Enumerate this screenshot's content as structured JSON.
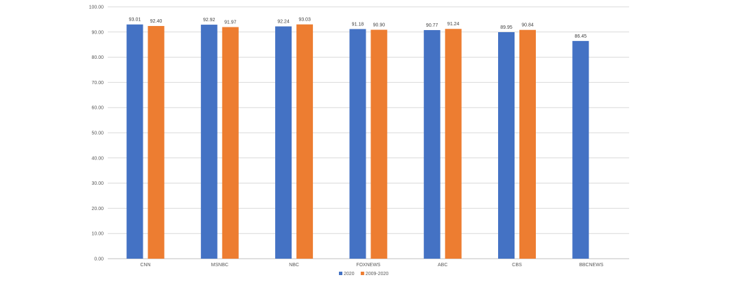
{
  "chart_data": {
    "type": "bar",
    "categories": [
      "CNN",
      "MSNBC",
      "NBC",
      "FOXNEWS",
      "ABC",
      "CBS",
      "BBCNEWS"
    ],
    "series": [
      {
        "name": "2020",
        "color": "#4472C4",
        "values": [
          93.01,
          92.92,
          92.24,
          91.18,
          90.77,
          89.95,
          86.45
        ],
        "labels": [
          "93.01",
          "92.92",
          "92.24",
          "91.18",
          "90.77",
          "89.95",
          "86.45"
        ]
      },
      {
        "name": "2009-2020",
        "color": "#ED7D31",
        "values": [
          92.4,
          91.97,
          93.03,
          90.9,
          91.24,
          90.84,
          null
        ],
        "labels": [
          "92.40",
          "91.97",
          "93.03",
          "90.90",
          "91.24",
          "90.84",
          null
        ]
      }
    ],
    "yticks": [
      "0.00",
      "10.00",
      "20.00",
      "30.00",
      "40.00",
      "50.00",
      "60.00",
      "70.00",
      "80.00",
      "90.00",
      "100.00"
    ],
    "ylim": [
      0,
      100
    ],
    "grid": true,
    "legend_position": "bottom",
    "title": "",
    "xlabel": "",
    "ylabel": ""
  }
}
